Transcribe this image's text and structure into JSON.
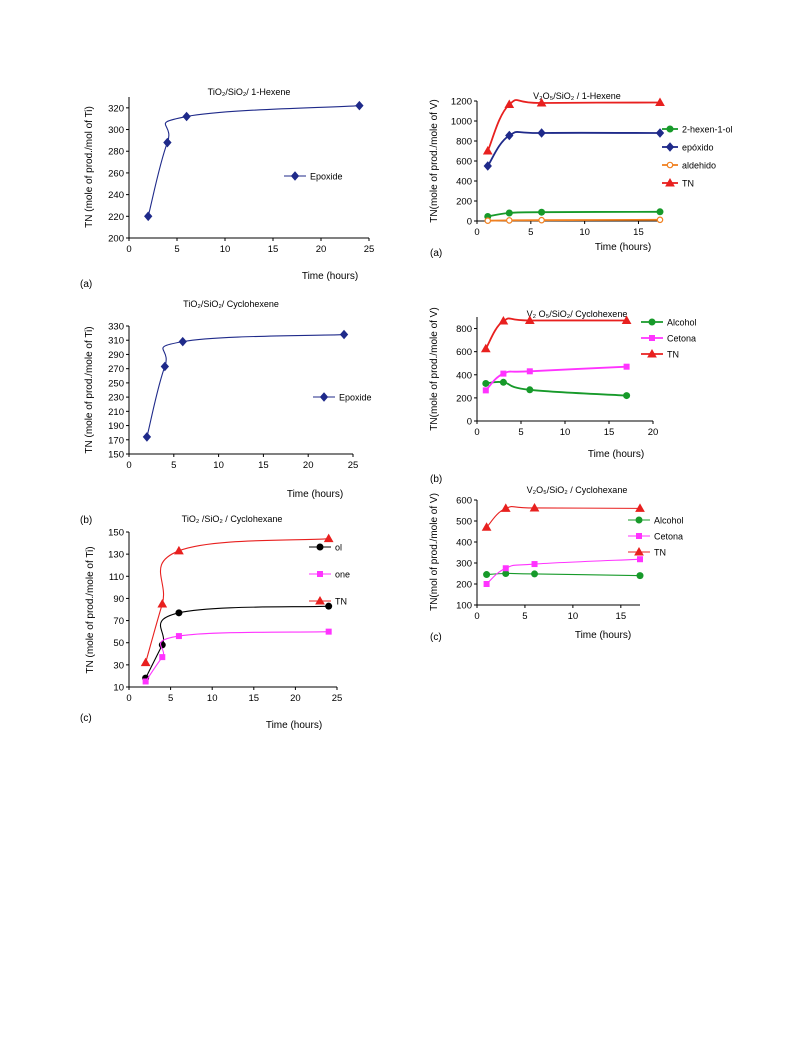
{
  "colors": {
    "navy": "#1f2a8a",
    "red": "#e8201f",
    "green": "#179a2a",
    "magenta": "#ff33ff",
    "orange": "#f08020",
    "black": "#000000"
  },
  "chart_data": [
    {
      "panel": "(a)",
      "type": "line",
      "title": "TiO₂/SiO₂/ 1-Hexene",
      "xlabel": "Time (hours)",
      "ylabel": "TN (mole of prod./mol of Ti)",
      "xlim": [
        0,
        25
      ],
      "ylim": [
        200,
        330
      ],
      "xticks": [
        0,
        5,
        10,
        15,
        20,
        25
      ],
      "yticks": [
        200,
        220,
        240,
        260,
        280,
        300,
        320
      ],
      "legend_placement": "right-middle",
      "series": [
        {
          "name": "Epoxide",
          "color": "#1f2a8a",
          "marker": "diamond",
          "x": [
            2,
            4,
            6,
            24
          ],
          "y": [
            220,
            288,
            312,
            322
          ]
        }
      ]
    },
    {
      "panel": "(b)",
      "type": "line",
      "title": "TiO₂/SiO₂/ Cyclohexene",
      "xlabel": "Time (hours)",
      "ylabel": "TN (mole of prod./mole of Ti)",
      "xlim": [
        0,
        25
      ],
      "ylim": [
        150,
        330
      ],
      "xticks": [
        0,
        5,
        10,
        15,
        20,
        25
      ],
      "yticks": [
        150,
        170,
        190,
        210,
        230,
        250,
        270,
        290,
        310,
        330
      ],
      "legend_placement": "right-middle",
      "series": [
        {
          "name": "Epoxide",
          "color": "#1f2a8a",
          "marker": "diamond",
          "x": [
            2,
            4,
            6,
            24
          ],
          "y": [
            174,
            273,
            308,
            318
          ]
        }
      ]
    },
    {
      "panel": "(c)",
      "type": "line",
      "title": "TiO₂ /SiO₂ / Cyclohexane",
      "xlabel": "Time (hours)",
      "ylabel": "TN (mole of  prod./mole of  Ti)",
      "xlim": [
        0,
        25
      ],
      "ylim": [
        10,
        150
      ],
      "xticks": [
        0,
        5,
        10,
        15,
        20,
        25
      ],
      "yticks": [
        10,
        30,
        50,
        70,
        90,
        110,
        130,
        150
      ],
      "legend_placement": "top-right",
      "series": [
        {
          "name": "ol",
          "color": "#000000",
          "marker": "circle",
          "x": [
            2,
            4,
            6,
            24
          ],
          "y": [
            18,
            48,
            77,
            83
          ]
        },
        {
          "name": "one",
          "color": "#ff33ff",
          "marker": "square",
          "x": [
            2,
            4,
            6,
            24
          ],
          "y": [
            15,
            37,
            56,
            60
          ]
        },
        {
          "name": "TN",
          "color": "#e8201f",
          "marker": "triangle",
          "x": [
            2,
            4,
            6,
            24
          ],
          "y": [
            32,
            85,
            133,
            144
          ]
        }
      ]
    },
    {
      "panel": "(a)",
      "type": "line",
      "title": "V₂O₅/SiO₂ / 1-Hexene",
      "xlabel": "Time (hours)",
      "ylabel": "TN(mole of prod./mole of V)",
      "xlim": [
        0,
        17
      ],
      "ylim": [
        0,
        1200
      ],
      "xticks": [
        0,
        5,
        10,
        15
      ],
      "yticks": [
        0,
        200,
        400,
        600,
        800,
        1000,
        1200
      ],
      "legend_placement": "right",
      "series": [
        {
          "name": "2-hexen-1-ol",
          "color": "#179a2a",
          "marker": "circle",
          "x": [
            1,
            3,
            6,
            17
          ],
          "y": [
            45,
            80,
            88,
            92
          ]
        },
        {
          "name": "epóxido",
          "color": "#1f2a8a",
          "marker": "diamond",
          "x": [
            1,
            3,
            6,
            17
          ],
          "y": [
            550,
            855,
            880,
            880
          ]
        },
        {
          "name": "aldehido",
          "color": "#f08020",
          "marker": "circle-open",
          "x": [
            1,
            3,
            6,
            17
          ],
          "y": [
            3,
            6,
            8,
            12
          ]
        },
        {
          "name": "TN",
          "color": "#e8201f",
          "marker": "triangle",
          "x": [
            1,
            3,
            6,
            17
          ],
          "y": [
            700,
            1165,
            1180,
            1185
          ]
        }
      ]
    },
    {
      "panel": "(b)",
      "type": "line",
      "title": "V₂ O₅/SiO₂/ Cyclohexene",
      "xlabel": "Time (hours)",
      "ylabel": "TN(mole of prod./mole of V)",
      "xlim": [
        0,
        20
      ],
      "ylim": [
        0,
        900
      ],
      "xticks": [
        0,
        5,
        10,
        15,
        20
      ],
      "yticks": [
        0,
        200,
        400,
        600,
        800
      ],
      "legend_placement": "right",
      "series": [
        {
          "name": "Alcohol",
          "color": "#179a2a",
          "marker": "circle",
          "x": [
            1,
            3,
            6,
            17
          ],
          "y": [
            325,
            335,
            270,
            220
          ]
        },
        {
          "name": "Cetona",
          "color": "#ff33ff",
          "marker": "square",
          "x": [
            1,
            3,
            6,
            17
          ],
          "y": [
            265,
            410,
            430,
            470
          ]
        },
        {
          "name": "TN",
          "color": "#e8201f",
          "marker": "triangle",
          "x": [
            1,
            3,
            6,
            17
          ],
          "y": [
            625,
            865,
            870,
            870
          ]
        }
      ]
    },
    {
      "panel": "(c)",
      "type": "line",
      "title": "V₂O₅/SiO₂ / Cyclohexane",
      "xlabel": "Time (hours)",
      "ylabel": "TN(mol of prod./mole of V)",
      "xlim": [
        0,
        17
      ],
      "ylim": [
        100,
        600
      ],
      "xticks": [
        0,
        5,
        10,
        15
      ],
      "yticks": [
        100,
        200,
        300,
        400,
        500,
        600
      ],
      "legend_placement": "right",
      "series": [
        {
          "name": "Alcohol",
          "color": "#179a2a",
          "marker": "circle",
          "x": [
            1,
            3,
            6,
            17
          ],
          "y": [
            245,
            250,
            248,
            240
          ]
        },
        {
          "name": "Cetona",
          "color": "#ff33ff",
          "marker": "square",
          "x": [
            1,
            3,
            6,
            17
          ],
          "y": [
            200,
            275,
            295,
            318
          ]
        },
        {
          "name": "TN",
          "color": "#e8201f",
          "marker": "triangle",
          "x": [
            1,
            3,
            6,
            17
          ],
          "y": [
            470,
            560,
            562,
            560
          ]
        }
      ]
    }
  ]
}
